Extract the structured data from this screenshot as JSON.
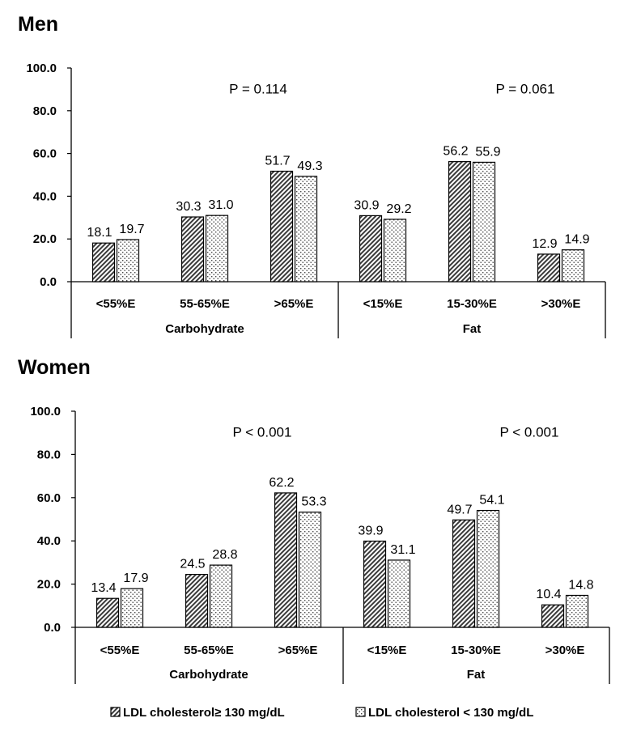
{
  "legend": [
    {
      "label": "LDL cholesterol≥ 130 mg/dL",
      "pattern": "hatch"
    },
    {
      "label": "LDL cholesterol < 130 mg/dL",
      "pattern": "dots"
    }
  ],
  "chart_data": [
    {
      "type": "bar",
      "title": "Men",
      "ylim": [
        0,
        100
      ],
      "yticks": [
        "0.0",
        "20.0",
        "40.0",
        "60.0",
        "80.0",
        "100.0"
      ],
      "groups": [
        {
          "name": "Carbohydrate",
          "p_value": "P = 0.114",
          "categories": [
            "<55%E",
            "55-65%E",
            ">65%E"
          ]
        },
        {
          "name": "Fat",
          "p_value": "P = 0.061",
          "categories": [
            "<15%E",
            "15-30%E",
            ">30%E"
          ]
        }
      ],
      "categories": [
        "<55%E",
        "55-65%E",
        ">65%E",
        "<15%E",
        "15-30%E",
        ">30%E"
      ],
      "series": [
        {
          "name": "LDL cholesterol≥ 130 mg/dL",
          "values": [
            18.1,
            30.3,
            51.7,
            30.9,
            56.2,
            12.9
          ],
          "labels": [
            "18.1",
            "30.3",
            "51.7",
            "30.9",
            "56.2",
            "12.9"
          ]
        },
        {
          "name": "LDL cholesterol < 130 mg/dL",
          "values": [
            19.7,
            31.0,
            49.3,
            29.2,
            55.9,
            14.9
          ],
          "labels": [
            "19.7",
            "31.0",
            "49.3",
            "29.2",
            "55.9",
            "14.9"
          ]
        }
      ]
    },
    {
      "type": "bar",
      "title": "Women",
      "ylim": [
        0,
        100
      ],
      "yticks": [
        "0.0",
        "20.0",
        "40.0",
        "60.0",
        "80.0",
        "100.0"
      ],
      "groups": [
        {
          "name": "Carbohydrate",
          "p_value": "P < 0.001",
          "categories": [
            "<55%E",
            "55-65%E",
            ">65%E"
          ]
        },
        {
          "name": "Fat",
          "p_value": "P < 0.001",
          "categories": [
            "<15%E",
            "15-30%E",
            ">30%E"
          ]
        }
      ],
      "categories": [
        "<55%E",
        "55-65%E",
        ">65%E",
        "<15%E",
        "15-30%E",
        ">30%E"
      ],
      "series": [
        {
          "name": "LDL cholesterol≥ 130 mg/dL",
          "values": [
            13.4,
            24.5,
            62.2,
            39.9,
            49.7,
            10.4
          ],
          "labels": [
            "13.4",
            "24.5",
            "62.2",
            "39.9",
            "49.7",
            "10.4"
          ]
        },
        {
          "name": "LDL cholesterol < 130 mg/dL",
          "values": [
            17.9,
            28.8,
            53.3,
            31.1,
            54.1,
            14.8
          ],
          "labels": [
            "17.9",
            "28.8",
            "53.3",
            "31.1",
            "54.1",
            "14.8"
          ]
        }
      ]
    }
  ]
}
